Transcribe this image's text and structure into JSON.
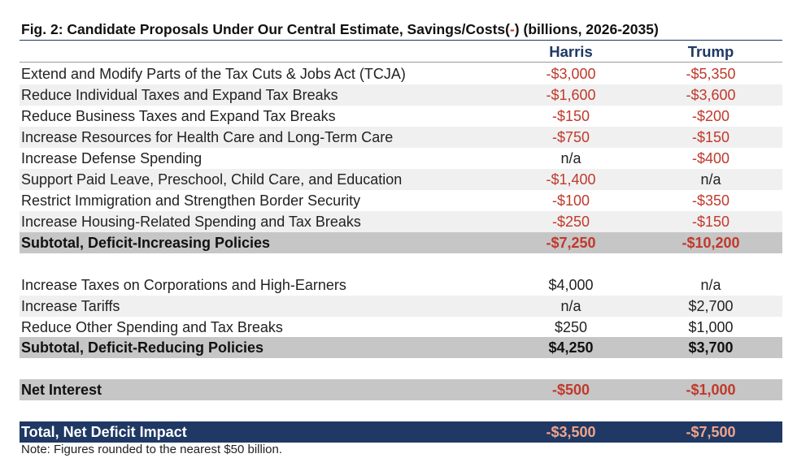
{
  "title": {
    "before": "Fig. 2: Candidate Proposals Under Our Central Estimate, Savings/Costs(",
    "minus": "-",
    "after": ") (billions, 2026-2035)"
  },
  "columns": {
    "harris": "Harris",
    "trump": "Trump"
  },
  "increasing": [
    {
      "label": "Extend and Modify Parts of the Tax Cuts & Jobs Act (TCJA)",
      "harris": "-$3,000",
      "trump": "-$5,350"
    },
    {
      "label": "Reduce Individual Taxes and Expand Tax Breaks",
      "harris": "-$1,600",
      "trump": "-$3,600"
    },
    {
      "label": "Reduce Business Taxes and Expand Tax Breaks",
      "harris": "-$150",
      "trump": "-$200"
    },
    {
      "label": "Increase Resources for Health Care and Long-Term Care",
      "harris": "-$750",
      "trump": "-$150"
    },
    {
      "label": "Increase Defense Spending",
      "harris": "n/a",
      "trump": "-$400"
    },
    {
      "label": "Support Paid Leave, Preschool, Child Care, and Education",
      "harris": "-$1,400",
      "trump": "n/a"
    },
    {
      "label": "Restrict Immigration and Strengthen Border Security",
      "harris": "-$100",
      "trump": "-$350"
    },
    {
      "label": "Increase Housing-Related Spending and Tax Breaks",
      "harris": "-$250",
      "trump": "-$150"
    }
  ],
  "subtotal_increasing": {
    "label": "Subtotal, Deficit-Increasing Policies",
    "harris": "-$7,250",
    "trump": "-$10,200"
  },
  "reducing": [
    {
      "label": "Increase Taxes on Corporations and High-Earners",
      "harris": "$4,000",
      "trump": "n/a"
    },
    {
      "label": "Increase Tariffs",
      "harris": "n/a",
      "trump": "$2,700"
    },
    {
      "label": "Reduce Other Spending and Tax Breaks",
      "harris": "$250",
      "trump": "$1,000"
    }
  ],
  "subtotal_reducing": {
    "label": "Subtotal, Deficit-Reducing Policies",
    "harris": "$4,250",
    "trump": "$3,700"
  },
  "net_interest": {
    "label": "Net Interest",
    "harris": "-$500",
    "trump": "-$1,000"
  },
  "total": {
    "label": "Total, Net Deficit Impact",
    "harris": "-$3,500",
    "trump": "-$7,500"
  },
  "note": "Note: Figures rounded to the nearest $50 billion.",
  "colors": {
    "header_navy": "#1f3864",
    "negative_red": "#c0392b",
    "subtotal_gray": "#c6c6c6",
    "total_negative": "#f0a48a"
  }
}
